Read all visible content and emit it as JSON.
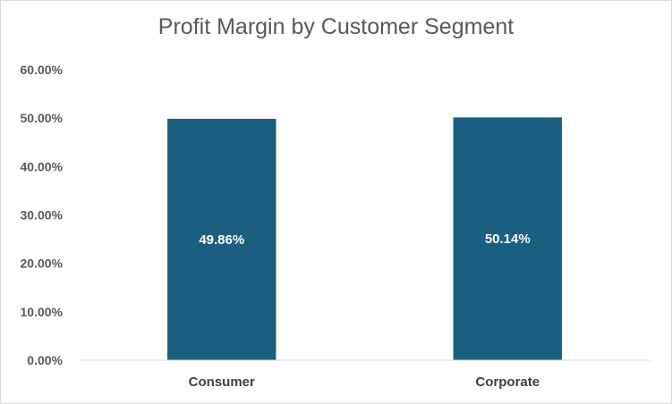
{
  "chart_data": {
    "type": "bar",
    "title": "Profit Margin by Customer Segment",
    "xlabel": "",
    "ylabel": "",
    "categories": [
      "Consumer",
      "Corporate"
    ],
    "values": [
      49.86,
      50.14
    ],
    "data_labels": [
      "49.86%",
      "50.14%"
    ],
    "ylim": [
      0,
      60
    ],
    "y_ticks": [
      0,
      10,
      20,
      30,
      40,
      50,
      60
    ],
    "y_tick_labels": [
      "0.00%",
      "10.00%",
      "20.00%",
      "30.00%",
      "40.00%",
      "50.00%",
      "60.00%"
    ],
    "bar_color": "#1a5e80",
    "grid": false,
    "legend": "none"
  }
}
